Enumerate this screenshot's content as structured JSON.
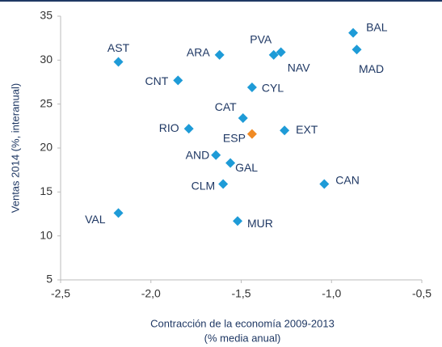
{
  "chart_data": {
    "type": "scatter",
    "xlabel": [
      "Contracción de la economía 2009-2013",
      "(% media anual)"
    ],
    "ylabel": "Ventas 2014 (%, interanual)",
    "labels": [
      "AST",
      "ARA",
      "PVA",
      "NAV",
      "BAL",
      "MAD",
      "CNT",
      "CYL",
      "CAT",
      "RIO",
      "ESP",
      "EXT",
      "AND",
      "GAL",
      "CLM",
      "CAN",
      "VAL",
      "MUR"
    ],
    "x": [
      -2.18,
      -1.62,
      -1.32,
      -1.28,
      -0.88,
      -0.86,
      -1.85,
      -1.44,
      -1.49,
      -1.79,
      -1.44,
      -1.26,
      -1.64,
      -1.56,
      -1.6,
      -1.04,
      -2.18,
      -1.52
    ],
    "values": [
      29.8,
      30.6,
      30.6,
      30.9,
      33.1,
      31.2,
      27.7,
      26.9,
      23.4,
      22.2,
      21.6,
      22.0,
      19.2,
      18.3,
      15.9,
      15.9,
      12.6,
      11.7
    ],
    "colors": [
      "#1e9bd7",
      "#1e9bd7",
      "#1e9bd7",
      "#1e9bd7",
      "#1e9bd7",
      "#1e9bd7",
      "#1e9bd7",
      "#1e9bd7",
      "#1e9bd7",
      "#1e9bd7",
      "#f08a24",
      "#1e9bd7",
      "#1e9bd7",
      "#1e9bd7",
      "#1e9bd7",
      "#1e9bd7",
      "#1e9bd7",
      "#1e9bd7"
    ],
    "xlim": [
      -2.5,
      -0.5
    ],
    "xticks": [
      {
        "value": -2.5,
        "label": "-2,5"
      },
      {
        "value": -2,
        "label": "-2,0"
      },
      {
        "value": -1.5,
        "label": "-1,5"
      },
      {
        "value": -1,
        "label": "-1,0"
      },
      {
        "value": -0.5,
        "label": "-0,5"
      }
    ],
    "ylim": [
      5,
      35
    ],
    "yticks": [
      5,
      10,
      15,
      20,
      25,
      30,
      35
    ],
    "grid": false
  }
}
